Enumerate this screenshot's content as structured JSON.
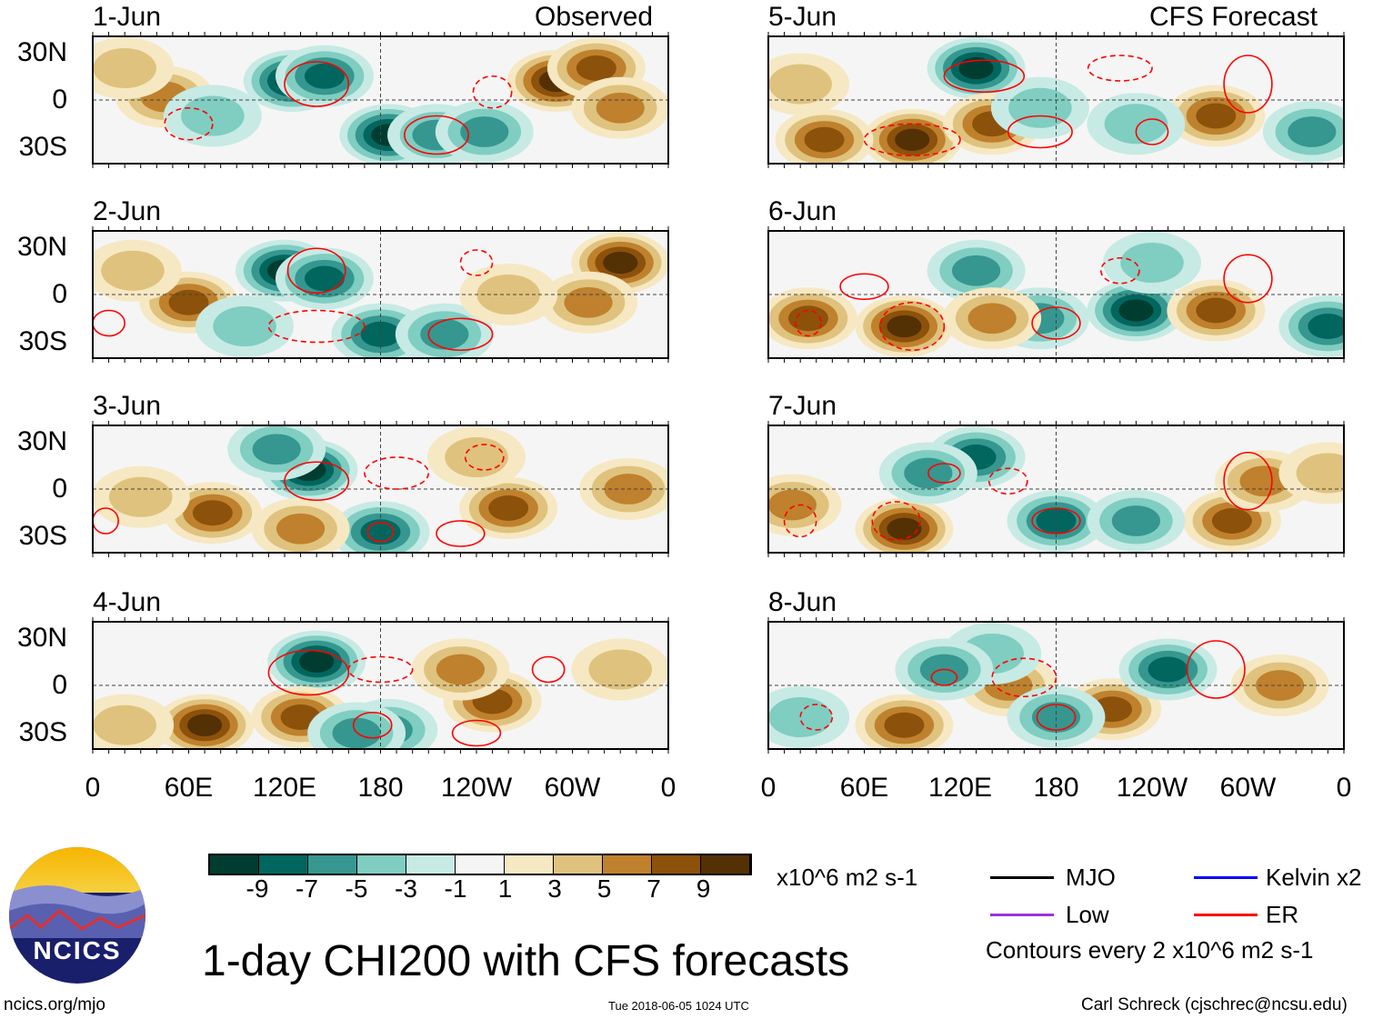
{
  "header": {
    "left_title": "Observed",
    "right_title": "CFS Forecast"
  },
  "chart_data": {
    "type": "heatmap",
    "title": "1-day CHI200 with CFS forecasts",
    "units": "x10^6 m2 s-1",
    "lat_ticks": [
      "30N",
      "0",
      "30S"
    ],
    "lon_ticks": [
      "0",
      "60E",
      "120E",
      "180",
      "120W",
      "60W",
      "0"
    ],
    "colorbar": {
      "levels": [
        "-9",
        "-7",
        "-5",
        "-3",
        "-1",
        "1",
        "3",
        "5",
        "7",
        "9"
      ],
      "colors": [
        "#003c30",
        "#01665e",
        "#35978f",
        "#80cdc1",
        "#c7eae5",
        "#f5f5f5",
        "#f6e8c3",
        "#dfc27d",
        "#bf812d",
        "#8c510a",
        "#543005"
      ]
    },
    "panels": [
      {
        "date": "1-Jun",
        "group": "Observed",
        "anomalies": [
          [
            125,
            12,
            -9
          ],
          [
            145,
            15,
            -7
          ],
          [
            185,
            -22,
            -9
          ],
          [
            215,
            -22,
            -6
          ],
          [
            245,
            -20,
            -5
          ],
          [
            290,
            12,
            9
          ],
          [
            315,
            20,
            7
          ],
          [
            330,
            -5,
            5
          ],
          [
            45,
            2,
            6
          ],
          [
            20,
            20,
            3
          ],
          [
            75,
            -10,
            -3
          ]
        ],
        "er": [
          [
            140,
            10,
            20,
            14,
            0
          ],
          [
            215,
            -22,
            20,
            12,
            0
          ],
          [
            60,
            -15,
            15,
            10,
            1
          ],
          [
            250,
            5,
            12,
            10,
            1
          ]
        ]
      },
      {
        "date": "2-Jun",
        "group": "Observed",
        "anomalies": [
          [
            120,
            15,
            -10
          ],
          [
            145,
            10,
            -7
          ],
          [
            180,
            -25,
            -7
          ],
          [
            220,
            -25,
            -5
          ],
          [
            330,
            20,
            9
          ],
          [
            310,
            -5,
            5
          ],
          [
            60,
            -5,
            7
          ],
          [
            25,
            15,
            3
          ],
          [
            260,
            0,
            3
          ],
          [
            95,
            -20,
            -3
          ]
        ],
        "er": [
          [
            140,
            15,
            18,
            14,
            0
          ],
          [
            230,
            -25,
            20,
            10,
            0
          ],
          [
            10,
            -18,
            10,
            8,
            0
          ],
          [
            140,
            -20,
            30,
            10,
            1
          ],
          [
            240,
            20,
            10,
            8,
            1
          ]
        ]
      },
      {
        "date": "3-Jun",
        "group": "Observed",
        "anomalies": [
          [
            135,
            12,
            -10
          ],
          [
            115,
            25,
            -5
          ],
          [
            180,
            -27,
            -8
          ],
          [
            75,
            -15,
            7
          ],
          [
            130,
            -25,
            6
          ],
          [
            260,
            -12,
            7
          ],
          [
            335,
            0,
            6
          ],
          [
            30,
            -5,
            4
          ],
          [
            240,
            20,
            3
          ]
        ],
        "er": [
          [
            140,
            5,
            20,
            12,
            0
          ],
          [
            180,
            -27,
            8,
            6,
            0
          ],
          [
            230,
            -28,
            15,
            8,
            0
          ],
          [
            8,
            -20,
            8,
            8,
            0
          ],
          [
            190,
            10,
            20,
            10,
            1
          ],
          [
            245,
            20,
            12,
            8,
            1
          ]
        ]
      },
      {
        "date": "4-Jun",
        "group": "Observed",
        "anomalies": [
          [
            140,
            15,
            -10
          ],
          [
            130,
            -20,
            7
          ],
          [
            185,
            -28,
            -6
          ],
          [
            70,
            -25,
            9
          ],
          [
            250,
            -10,
            8
          ],
          [
            230,
            10,
            5
          ],
          [
            20,
            -25,
            4
          ],
          [
            330,
            10,
            4
          ],
          [
            165,
            -30,
            -5
          ]
        ],
        "er": [
          [
            135,
            8,
            25,
            14,
            0
          ],
          [
            175,
            -25,
            12,
            8,
            0
          ],
          [
            240,
            -30,
            15,
            8,
            0
          ],
          [
            180,
            10,
            20,
            8,
            1
          ],
          [
            285,
            10,
            10,
            8,
            0
          ]
        ]
      },
      {
        "date": "5-Jun",
        "group": "CFS Forecast",
        "anomalies": [
          [
            130,
            20,
            -9
          ],
          [
            90,
            -25,
            9
          ],
          [
            35,
            -25,
            7
          ],
          [
            140,
            -15,
            7
          ],
          [
            280,
            -10,
            8
          ],
          [
            170,
            -5,
            -4
          ],
          [
            230,
            -15,
            -4
          ],
          [
            340,
            -20,
            -5
          ],
          [
            20,
            10,
            3
          ]
        ],
        "er": [
          [
            135,
            15,
            25,
            10,
            0
          ],
          [
            170,
            -20,
            20,
            10,
            0
          ],
          [
            240,
            -20,
            10,
            8,
            0
          ],
          [
            300,
            10,
            15,
            18,
            0
          ],
          [
            220,
            20,
            20,
            8,
            1
          ],
          [
            90,
            -25,
            30,
            10,
            1
          ]
        ]
      },
      {
        "date": "6-Jun",
        "group": "CFS Forecast",
        "anomalies": [
          [
            85,
            -20,
            10
          ],
          [
            25,
            -15,
            7
          ],
          [
            130,
            15,
            -6
          ],
          [
            230,
            -10,
            -9
          ],
          [
            350,
            -20,
            -7
          ],
          [
            170,
            -15,
            -5
          ],
          [
            280,
            -10,
            8
          ],
          [
            240,
            20,
            -3
          ],
          [
            140,
            -15,
            5
          ]
        ],
        "er": [
          [
            180,
            -18,
            15,
            10,
            0
          ],
          [
            90,
            -20,
            20,
            15,
            1
          ],
          [
            300,
            10,
            15,
            15,
            0
          ],
          [
            60,
            5,
            15,
            8,
            0
          ],
          [
            25,
            -18,
            8,
            8,
            1
          ],
          [
            220,
            15,
            12,
            8,
            1
          ]
        ]
      },
      {
        "date": "7-Jun",
        "group": "CFS Forecast",
        "anomalies": [
          [
            130,
            20,
            -7
          ],
          [
            85,
            -25,
            9
          ],
          [
            15,
            -10,
            6
          ],
          [
            180,
            -20,
            -8
          ],
          [
            290,
            -20,
            7
          ],
          [
            310,
            5,
            6
          ],
          [
            230,
            -20,
            -5
          ],
          [
            100,
            10,
            -5
          ],
          [
            350,
            10,
            3
          ]
        ],
        "er": [
          [
            180,
            -20,
            15,
            8,
            0
          ],
          [
            300,
            5,
            15,
            18,
            0
          ],
          [
            20,
            -20,
            10,
            10,
            1
          ],
          [
            110,
            10,
            10,
            6,
            0
          ],
          [
            150,
            5,
            12,
            8,
            1
          ],
          [
            80,
            -20,
            15,
            12,
            1
          ]
        ]
      },
      {
        "date": "8-Jun",
        "group": "CFS Forecast",
        "anomalies": [
          [
            85,
            -25,
            8
          ],
          [
            215,
            -15,
            8
          ],
          [
            150,
            0,
            6
          ],
          [
            250,
            10,
            -7
          ],
          [
            180,
            -20,
            -6
          ],
          [
            320,
            0,
            6
          ],
          [
            20,
            -20,
            -4
          ],
          [
            140,
            20,
            -4
          ],
          [
            110,
            10,
            -5
          ]
        ],
        "er": [
          [
            180,
            -20,
            12,
            8,
            0
          ],
          [
            280,
            10,
            18,
            18,
            0
          ],
          [
            110,
            5,
            8,
            5,
            0
          ],
          [
            30,
            -20,
            10,
            8,
            1
          ],
          [
            160,
            5,
            20,
            12,
            1
          ]
        ]
      }
    ]
  },
  "legend": {
    "mjo": "MJO",
    "kelvin": "Kelvin x2",
    "low": "Low",
    "er": "ER",
    "contours": "Contours every 2 x10^6 m2 s-1",
    "colors": {
      "mjo": "#000000",
      "kelvin": "#0000ff",
      "low": "#9933dd",
      "er": "#ff0000"
    }
  },
  "footer": {
    "logo_text": "NCICS",
    "url": "ncics.org/mjo",
    "timestamp": "Tue 2018-06-05 1024 UTC",
    "credit": "Carl Schreck (cjschrec@ncsu.edu)"
  }
}
